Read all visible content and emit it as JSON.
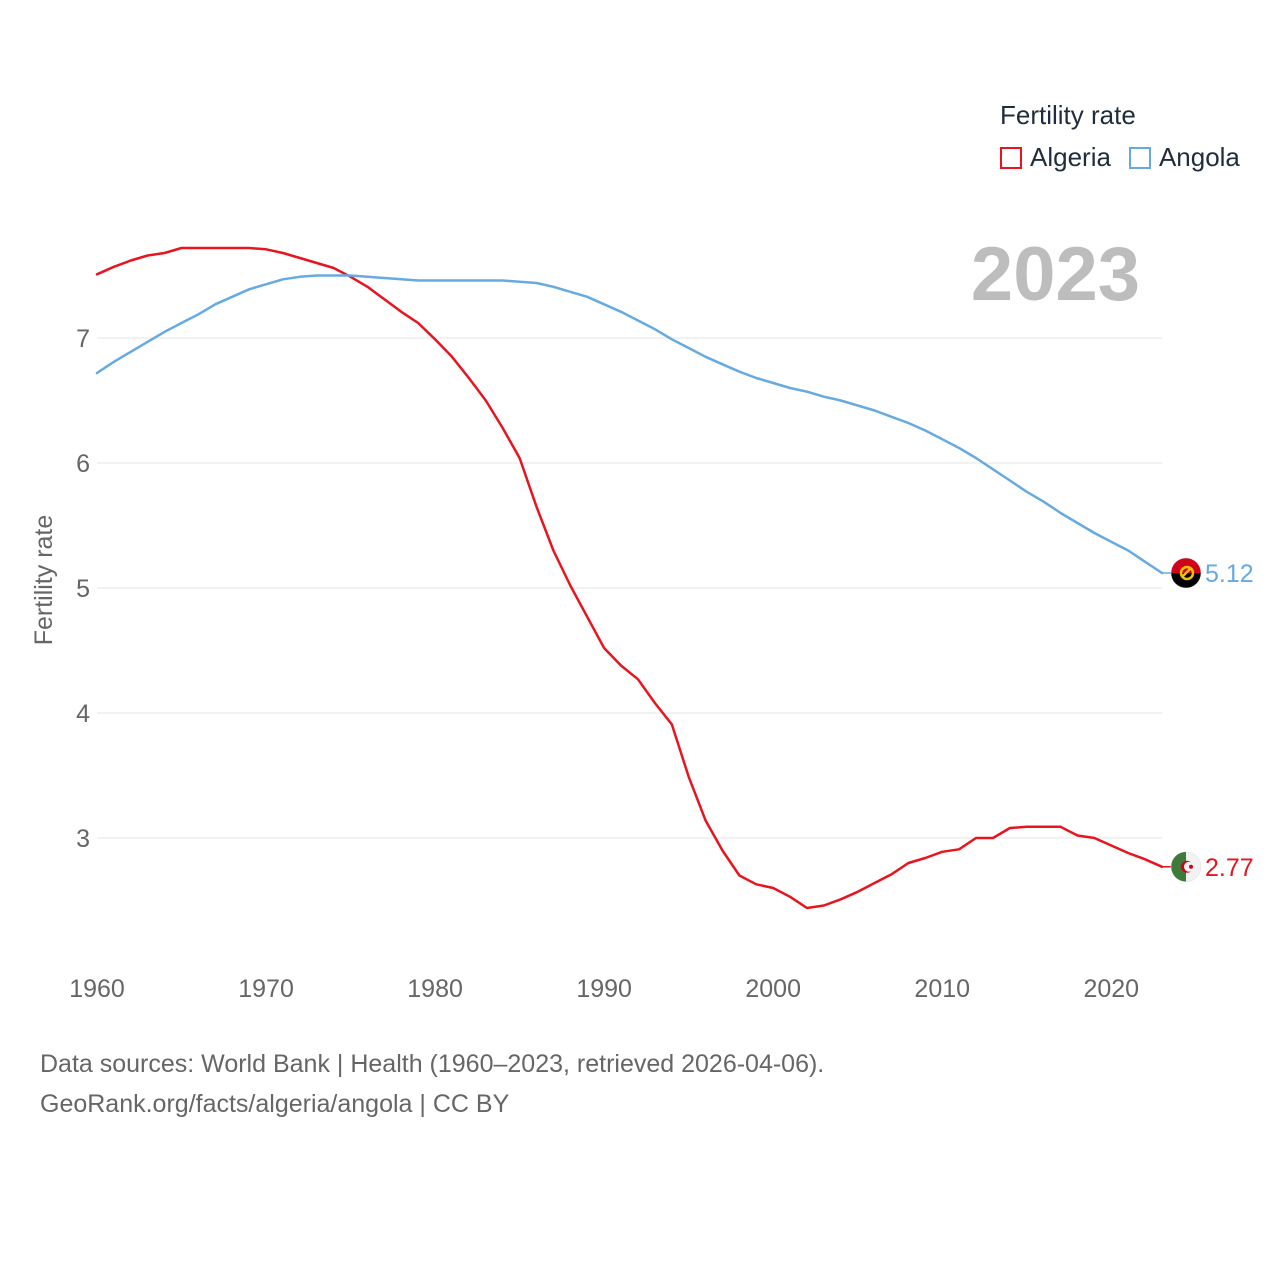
{
  "legend": {
    "title": "Fertility rate",
    "items": [
      {
        "name": "Algeria",
        "color": "#e8141e"
      },
      {
        "name": "Angola",
        "color": "#66aae2"
      }
    ]
  },
  "year_label": "2023",
  "source": {
    "line1": "Data sources: World Bank | Health (1960–2023, retrieved 2026-04-06).",
    "line2": "GeoRank.org/facts/algeria/angola | CC BY"
  },
  "chart_data": {
    "type": "line",
    "title": "",
    "xlabel": "",
    "ylabel": "Fertility rate",
    "xlim": [
      1960,
      2023
    ],
    "ylim": [
      2.0,
      8.0
    ],
    "x_ticks": [
      "1960",
      "1970",
      "1980",
      "1990",
      "2000",
      "2010",
      "2020"
    ],
    "y_ticks": [
      "3",
      "4",
      "5",
      "6",
      "7"
    ],
    "grid": true,
    "x": [
      1960,
      1961,
      1962,
      1963,
      1964,
      1965,
      1966,
      1967,
      1968,
      1969,
      1970,
      1971,
      1972,
      1973,
      1974,
      1975,
      1976,
      1977,
      1978,
      1979,
      1980,
      1981,
      1982,
      1983,
      1984,
      1985,
      1986,
      1987,
      1988,
      1989,
      1990,
      1991,
      1992,
      1993,
      1994,
      1995,
      1996,
      1997,
      1998,
      1999,
      2000,
      2001,
      2002,
      2003,
      2004,
      2005,
      2006,
      2007,
      2008,
      2009,
      2010,
      2011,
      2012,
      2013,
      2014,
      2015,
      2016,
      2017,
      2018,
      2019,
      2020,
      2021,
      2022,
      2023
    ],
    "series": [
      {
        "name": "Algeria",
        "color": "#e8141e",
        "end_label": "2.77",
        "flag": "algeria-flag",
        "values": [
          7.51,
          7.57,
          7.62,
          7.66,
          7.68,
          7.72,
          7.72,
          7.72,
          7.72,
          7.72,
          7.71,
          7.68,
          7.64,
          7.6,
          7.56,
          7.49,
          7.41,
          7.31,
          7.21,
          7.12,
          6.99,
          6.85,
          6.68,
          6.5,
          6.28,
          6.04,
          5.65,
          5.3,
          5.02,
          4.77,
          4.52,
          4.38,
          4.27,
          4.08,
          3.91,
          3.49,
          3.14,
          2.9,
          2.7,
          2.63,
          2.6,
          2.53,
          2.44,
          2.46,
          2.51,
          2.57,
          2.64,
          2.71,
          2.8,
          2.84,
          2.89,
          2.91,
          3.0,
          3.0,
          3.08,
          3.09,
          3.09,
          3.09,
          3.02,
          3.0,
          2.94,
          2.88,
          2.83,
          2.77
        ]
      },
      {
        "name": "Angola",
        "color": "#66aae2",
        "end_label": "5.12",
        "flag": "angola-flag",
        "values": [
          6.72,
          6.81,
          6.89,
          6.97,
          7.05,
          7.12,
          7.19,
          7.27,
          7.33,
          7.39,
          7.43,
          7.47,
          7.49,
          7.5,
          7.5,
          7.5,
          7.49,
          7.48,
          7.47,
          7.46,
          7.46,
          7.46,
          7.46,
          7.46,
          7.46,
          7.45,
          7.44,
          7.41,
          7.37,
          7.33,
          7.27,
          7.21,
          7.14,
          7.07,
          6.99,
          6.92,
          6.85,
          6.79,
          6.73,
          6.68,
          6.64,
          6.6,
          6.57,
          6.53,
          6.5,
          6.46,
          6.42,
          6.37,
          6.32,
          6.26,
          6.19,
          6.12,
          6.04,
          5.95,
          5.86,
          5.77,
          5.69,
          5.6,
          5.52,
          5.44,
          5.37,
          5.3,
          5.21,
          5.12
        ]
      }
    ]
  }
}
